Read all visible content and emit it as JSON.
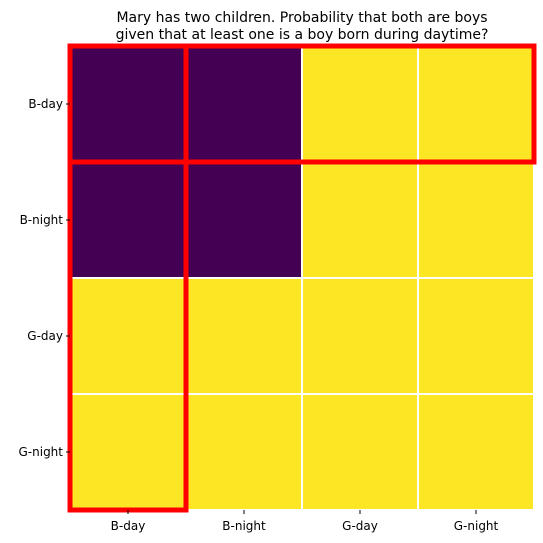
{
  "chart_data": {
    "type": "heatmap",
    "title": [
      "Mary has two children. Probability that both are boys",
      "given that at least one is a boy born during daytime?"
    ],
    "xlabel": "",
    "ylabel": "",
    "x_categories": [
      "B-day",
      "B-night",
      "G-day",
      "G-night"
    ],
    "y_categories": [
      "B-day",
      "B-night",
      "G-day",
      "G-night"
    ],
    "values": [
      [
        1,
        1,
        0,
        0
      ],
      [
        1,
        1,
        0,
        0
      ],
      [
        0,
        0,
        0,
        0
      ],
      [
        0,
        0,
        0,
        0
      ]
    ],
    "colormap": {
      "1": "#440154",
      "0": "#fde725"
    },
    "cell_border_color": "#ffffff",
    "highlight": {
      "color": "#ff0000",
      "regions": [
        {
          "rows": [
            0,
            0
          ],
          "cols": [
            0,
            3
          ]
        },
        {
          "rows": [
            0,
            3
          ],
          "cols": [
            0,
            0
          ]
        }
      ]
    }
  }
}
